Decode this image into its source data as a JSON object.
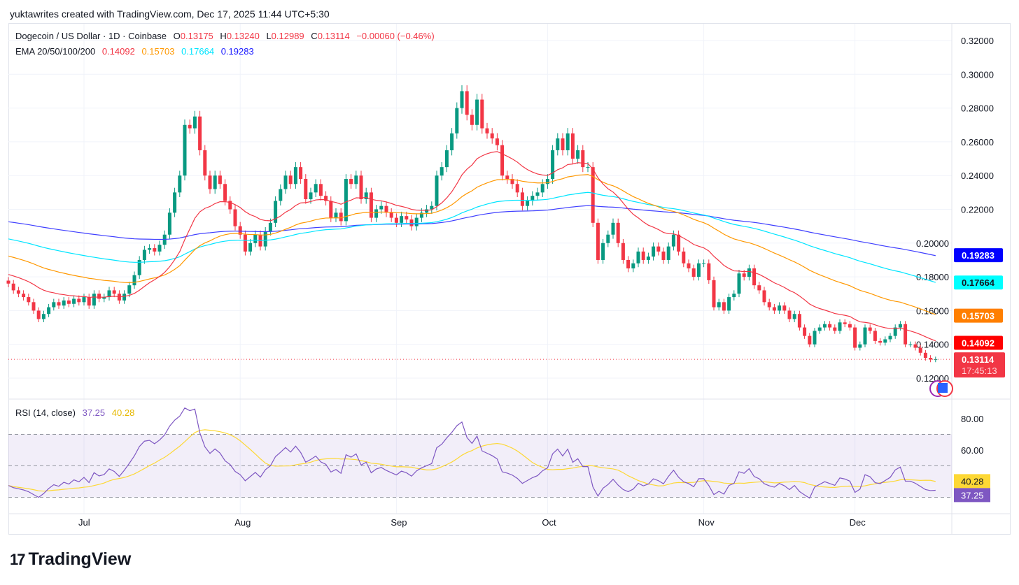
{
  "credit": "yuktawrites created with TradingView.com, Dec 17, 2025 11:44 UTC+5:30",
  "legend": {
    "symbol": "Dogecoin / US Dollar · 1D · Coinbase",
    "o_label": "O",
    "o": "0.13175",
    "h_label": "H",
    "h": "0.13240",
    "l_label": "L",
    "l": "0.12989",
    "c_label": "C",
    "c": "0.13114",
    "change": "−0.00060 (−0.46%)",
    "ema_label": "EMA 20/50/100/200",
    "ema20": "0.14092",
    "ema50": "0.15703",
    "ema100": "0.17664",
    "ema200": "0.19283"
  },
  "rsi_legend": {
    "label": "RSI (14, close)",
    "rsi": "37.25",
    "ma": "40.28"
  },
  "countdown": "17:45:13",
  "logo": "TradingView",
  "colors": {
    "up": "#089981",
    "down": "#f23645",
    "ema20": "#f23645",
    "ema50": "#ff9800",
    "ema100": "#00e5ff",
    "ema200": "#3f3fff",
    "rsi": "#7e57c2",
    "rsi_ma": "#fdd835"
  },
  "chart_data": {
    "type": "candlestick",
    "start_date": "2025-06-16",
    "interval": "1D",
    "x_ticks": [
      {
        "label": "Jul",
        "date": "2025-07-01"
      },
      {
        "label": "Aug",
        "date": "2025-08-01"
      },
      {
        "label": "Sep",
        "date": "2025-09-01"
      },
      {
        "label": "Oct",
        "date": "2025-10-01"
      },
      {
        "label": "Nov",
        "date": "2025-11-01"
      },
      {
        "label": "Dec",
        "date": "2025-12-01"
      }
    ],
    "y_ticks": [
      "0.32000",
      "0.30000",
      "0.28000",
      "0.26000",
      "0.24000",
      "0.22000",
      "0.20000",
      "0.18000",
      "0.16000",
      "0.14000",
      "0.12000"
    ],
    "ylim": [
      0.11,
      0.33
    ],
    "closes": [
      0.176,
      0.172,
      0.17,
      0.168,
      0.165,
      0.16,
      0.155,
      0.158,
      0.162,
      0.165,
      0.163,
      0.166,
      0.164,
      0.167,
      0.165,
      0.168,
      0.163,
      0.17,
      0.167,
      0.168,
      0.172,
      0.17,
      0.166,
      0.17,
      0.175,
      0.181,
      0.19,
      0.196,
      0.197,
      0.195,
      0.199,
      0.205,
      0.218,
      0.23,
      0.24,
      0.27,
      0.268,
      0.275,
      0.255,
      0.24,
      0.232,
      0.24,
      0.235,
      0.225,
      0.22,
      0.21,
      0.205,
      0.195,
      0.2,
      0.205,
      0.198,
      0.207,
      0.212,
      0.225,
      0.232,
      0.24,
      0.235,
      0.245,
      0.238,
      0.226,
      0.23,
      0.235,
      0.228,
      0.225,
      0.215,
      0.218,
      0.213,
      0.238,
      0.235,
      0.24,
      0.226,
      0.23,
      0.215,
      0.22,
      0.222,
      0.218,
      0.215,
      0.212,
      0.216,
      0.214,
      0.21,
      0.215,
      0.218,
      0.22,
      0.222,
      0.24,
      0.245,
      0.255,
      0.265,
      0.28,
      0.29,
      0.276,
      0.27,
      0.285,
      0.268,
      0.265,
      0.262,
      0.258,
      0.24,
      0.238,
      0.235,
      0.23,
      0.222,
      0.225,
      0.228,
      0.23,
      0.235,
      0.238,
      0.255,
      0.262,
      0.255,
      0.265,
      0.25,
      0.255,
      0.245,
      0.245,
      0.212,
      0.19,
      0.2,
      0.205,
      0.212,
      0.2,
      0.19,
      0.185,
      0.188,
      0.195,
      0.19,
      0.192,
      0.198,
      0.195,
      0.19,
      0.198,
      0.205,
      0.195,
      0.188,
      0.185,
      0.18,
      0.188,
      0.188,
      0.178,
      0.162,
      0.165,
      0.16,
      0.168,
      0.17,
      0.182,
      0.18,
      0.185,
      0.175,
      0.172,
      0.165,
      0.162,
      0.16,
      0.163,
      0.16,
      0.155,
      0.158,
      0.15,
      0.145,
      0.14,
      0.148,
      0.15,
      0.152,
      0.15,
      0.148,
      0.153,
      0.152,
      0.15,
      0.138,
      0.14,
      0.15,
      0.148,
      0.142,
      0.141,
      0.143,
      0.145,
      0.15,
      0.152,
      0.14,
      0.14,
      0.138,
      0.135,
      0.132,
      0.131,
      0.13114
    ],
    "ema_start": {
      "ema20": 0.182,
      "ema50": 0.193,
      "ema100": 0.203,
      "ema200": 0.213
    },
    "last_price": 0.13114,
    "ema_last": {
      "ema20": 0.14092,
      "ema50": 0.15703,
      "ema100": 0.17664,
      "ema200": 0.19283
    },
    "rsi": {
      "period": 14,
      "ticks": [
        "80.00",
        "60.00"
      ],
      "bands": [
        70,
        50,
        30
      ],
      "ylim": [
        20,
        90
      ],
      "last": 37.25,
      "ma_last": 40.28
    }
  }
}
